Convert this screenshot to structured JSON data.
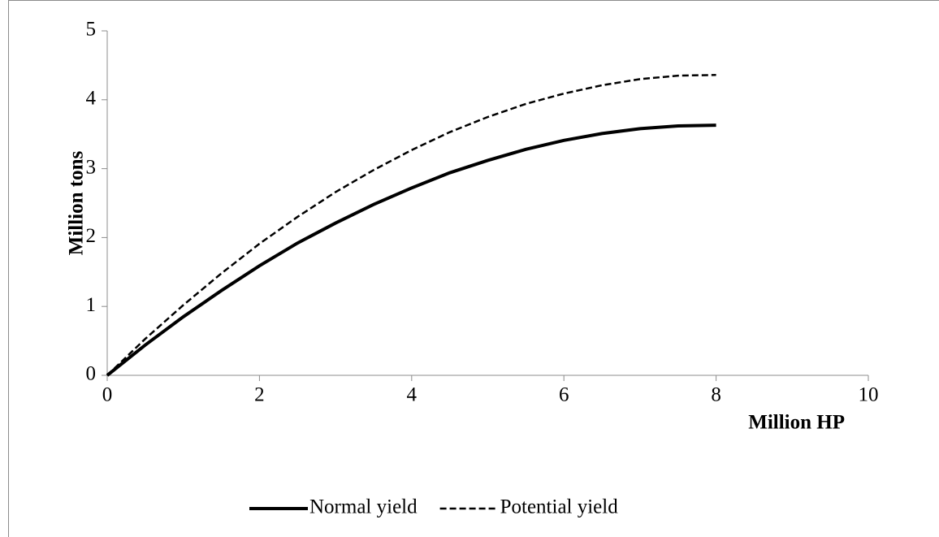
{
  "chart_data": {
    "type": "line",
    "x_label": "Million HP",
    "y_label": "Million tons",
    "x": [
      0,
      0.5,
      1,
      1.5,
      2,
      2.5,
      3,
      3.5,
      4,
      4.5,
      5,
      5.5,
      6,
      6.5,
      7,
      7.5,
      8
    ],
    "series": [
      {
        "name": "Normal yield",
        "color": "#000000",
        "dash": "solid",
        "values": [
          0,
          0.44,
          0.85,
          1.23,
          1.59,
          1.92,
          2.21,
          2.48,
          2.72,
          2.94,
          3.12,
          3.28,
          3.41,
          3.51,
          3.58,
          3.62,
          3.63
        ]
      },
      {
        "name": "Potential yield",
        "color": "#000000",
        "dash": "dashed",
        "values": [
          0,
          0.53,
          1.02,
          1.48,
          1.91,
          2.3,
          2.66,
          2.98,
          3.27,
          3.53,
          3.75,
          3.94,
          4.09,
          4.21,
          4.3,
          4.35,
          4.36
        ]
      }
    ],
    "xlim": [
      0,
      10
    ],
    "xticks": [
      0,
      2,
      4,
      6,
      8,
      10
    ],
    "ylim": [
      0,
      5
    ],
    "yticks": [
      0,
      1,
      2,
      3,
      4,
      5
    ],
    "grid": false,
    "legend": "bottom"
  }
}
